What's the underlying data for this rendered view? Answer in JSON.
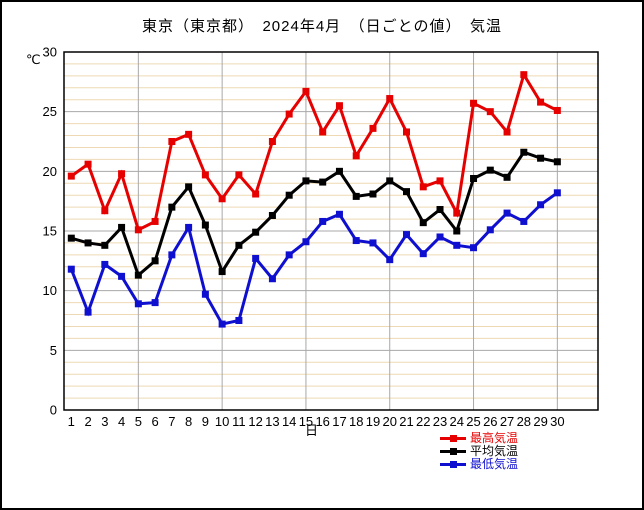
{
  "title": "東京（東京都）　2024年4月　（日ごとの値）　気温",
  "chart_data": {
    "type": "line",
    "title": "東京（東京都）　2024年4月　（日ごとの値）　気温",
    "xlabel": "日",
    "ylabel": "℃",
    "ylim": [
      0,
      30
    ],
    "y_major_ticks": [
      0,
      5,
      10,
      15,
      20,
      25,
      30
    ],
    "y_minor_step": 1,
    "x_gridline_days": [
      5,
      10,
      15,
      20,
      25,
      30
    ],
    "grid": "on",
    "legend_position": "bottom-right",
    "x": [
      1,
      2,
      3,
      4,
      5,
      6,
      7,
      8,
      9,
      10,
      11,
      12,
      13,
      14,
      15,
      16,
      17,
      18,
      19,
      20,
      21,
      22,
      23,
      24,
      25,
      26,
      27,
      28,
      29,
      30
    ],
    "series": [
      {
        "name": "最高気温",
        "color": "#e60000",
        "values": [
          19.6,
          20.6,
          16.7,
          19.8,
          15.1,
          15.8,
          22.5,
          23.1,
          19.7,
          17.7,
          19.7,
          18.1,
          22.5,
          24.8,
          26.7,
          23.3,
          25.5,
          21.3,
          23.6,
          26.1,
          23.3,
          18.7,
          19.2,
          16.5,
          25.7,
          25.0,
          23.3,
          28.1,
          25.8,
          25.1
        ]
      },
      {
        "name": "平均気温",
        "color": "#000000",
        "values": [
          14.4,
          14.0,
          13.8,
          15.3,
          11.3,
          12.5,
          17.0,
          18.7,
          15.5,
          11.6,
          13.8,
          14.9,
          16.3,
          18.0,
          19.2,
          19.1,
          20.0,
          17.9,
          18.1,
          19.2,
          18.3,
          15.7,
          16.8,
          15.0,
          19.4,
          20.1,
          19.5,
          21.6,
          21.1,
          20.8
        ]
      },
      {
        "name": "最低気温",
        "color": "#0f0fd0",
        "values": [
          11.8,
          8.2,
          12.2,
          11.2,
          8.9,
          9.0,
          13.0,
          15.3,
          9.7,
          7.2,
          7.5,
          12.7,
          11.0,
          13.0,
          14.1,
          15.8,
          16.4,
          14.2,
          14.0,
          12.6,
          14.7,
          13.1,
          14.5,
          13.8,
          13.6,
          15.1,
          16.5,
          15.8,
          17.2,
          18.2
        ]
      }
    ],
    "colors": {
      "minor_grid": "#eed9b4",
      "major_grid": "#a8a8a8",
      "frame": "#000000",
      "text": "#000000"
    }
  }
}
